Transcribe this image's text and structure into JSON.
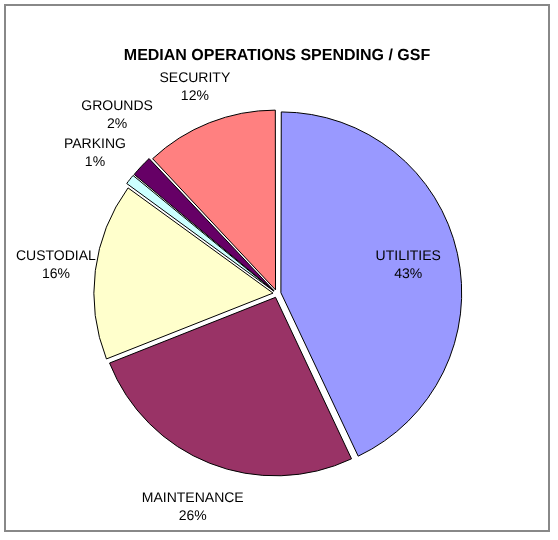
{
  "chart_data": {
    "type": "pie",
    "title": "MEDIAN OPERATIONS SPENDING / GSF",
    "categories": [
      "UTILITIES",
      "MAINTENANCE",
      "CUSTODIAL",
      "PARKING",
      "GROUNDS",
      "SECURITY"
    ],
    "values": [
      43,
      26,
      16,
      1,
      2,
      12
    ],
    "value_labels": [
      "43%",
      "26%",
      "16%",
      "1%",
      "2%",
      "12%"
    ],
    "colors": [
      "#9999ff",
      "#993366",
      "#ffffcc",
      "#ccffff",
      "#660066",
      "#ff8080"
    ],
    "legend": false
  }
}
